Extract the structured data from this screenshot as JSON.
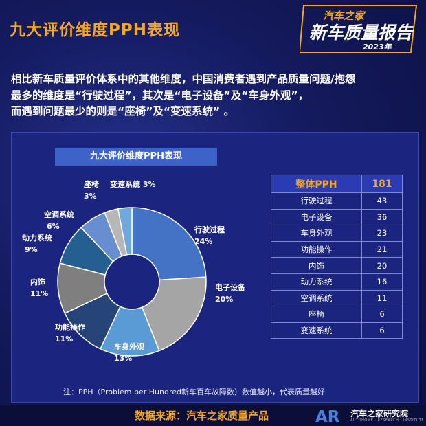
{
  "header": {
    "title": "九大评价维度PPH表现",
    "brand_line1": "汽车之家",
    "brand_line2": "新车质量报告",
    "brand_year": "2023年"
  },
  "intro": {
    "line1": "相比新车质量评价体系中的其他维度，中国消费者遇到产品质量问题/抱怨",
    "line2": "最多的维度是“行驶过程”，其次是“电子设备”及“车身外观”，",
    "line3": "而遇到问题最少的则是“座椅”及“变速系统” 。"
  },
  "chart_data": {
    "type": "pie",
    "title": "九大评价维度PPH表现",
    "categories": [
      "行驶过程",
      "电子设备",
      "车身外观",
      "功能操作",
      "内饰",
      "动力系统",
      "空调系统",
      "座椅",
      "变速系统"
    ],
    "values": [
      24,
      20,
      13,
      11,
      11,
      9,
      6,
      3,
      3
    ],
    "value_labels": [
      "24%",
      "20%",
      "13%",
      "11%",
      "11%",
      "9%",
      "6%",
      "3%",
      "3%"
    ],
    "colors": [
      "#4472c4",
      "#a5a5a5",
      "#5b9bd5",
      "#264478",
      "#7f7f7f",
      "#255e91",
      "#698ed0",
      "#b7b7b7",
      "#6fa8dc"
    ],
    "donut": true
  },
  "table": {
    "header_label": "整体PPH",
    "header_value": "181",
    "rows": [
      {
        "label": "行驶过程",
        "value": "43"
      },
      {
        "label": "电子设备",
        "value": "36"
      },
      {
        "label": "车身外观",
        "value": "23"
      },
      {
        "label": "功能操作",
        "value": "21"
      },
      {
        "label": "内饰",
        "value": "20"
      },
      {
        "label": "动力系统",
        "value": "16"
      },
      {
        "label": "空调系统",
        "value": "11"
      },
      {
        "label": "座椅",
        "value": "6"
      },
      {
        "label": "变速系统",
        "value": "6"
      }
    ]
  },
  "note": "注：PPH（Problem per Hundred新车百车故障数）数值越小，代表质量越好",
  "footer": {
    "source": "数据来源：汽车之家质量产品",
    "logo_text": "AR",
    "institute": "汽车之家研究院",
    "institute_en": "AUTOHOME · RESEARCH · INSTITUTE"
  }
}
